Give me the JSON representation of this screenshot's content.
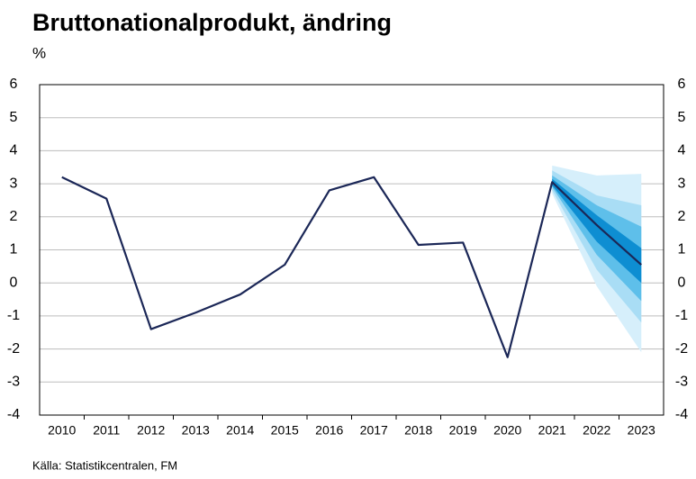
{
  "chart_data": {
    "type": "line",
    "title": "Bruttonationalprodukt, ändring",
    "y_label": "%",
    "source": "Källa: Statistikcentralen, FM",
    "categories": [
      "2010",
      "2011",
      "2012",
      "2013",
      "2014",
      "2015",
      "2016",
      "2017",
      "2018",
      "2019",
      "2020",
      "2021",
      "2022",
      "2023"
    ],
    "series": [
      {
        "color": "#1b2757",
        "values": [
          3.2,
          2.55,
          -1.4,
          -0.9,
          -0.35,
          0.55,
          2.8,
          3.2,
          1.15,
          1.22,
          -2.25,
          3.05,
          1.75,
          0.55
        ]
      }
    ],
    "fan": {
      "x": [
        "2021",
        "2022",
        "2023"
      ],
      "bands": [
        {
          "color": "#d6effb",
          "lower": [
            2.7,
            -0.1,
            -2.1
          ],
          "upper": [
            3.55,
            3.25,
            3.3
          ]
        },
        {
          "color": "#a9ddf5",
          "lower": [
            2.8,
            0.4,
            -1.2
          ],
          "upper": [
            3.4,
            2.65,
            2.35
          ]
        },
        {
          "color": "#5ebfea",
          "lower": [
            2.9,
            0.85,
            -0.55
          ],
          "upper": [
            3.25,
            2.35,
            1.7
          ]
        },
        {
          "color": "#0e8ed2",
          "lower": [
            2.95,
            1.25,
            0.0
          ],
          "upper": [
            3.15,
            2.05,
            1.05
          ]
        }
      ]
    },
    "ylim": [
      -4,
      6
    ],
    "yticks": [
      -4,
      -3,
      -2,
      -1,
      0,
      1,
      2,
      3,
      4,
      5,
      6
    ],
    "grid": true
  }
}
